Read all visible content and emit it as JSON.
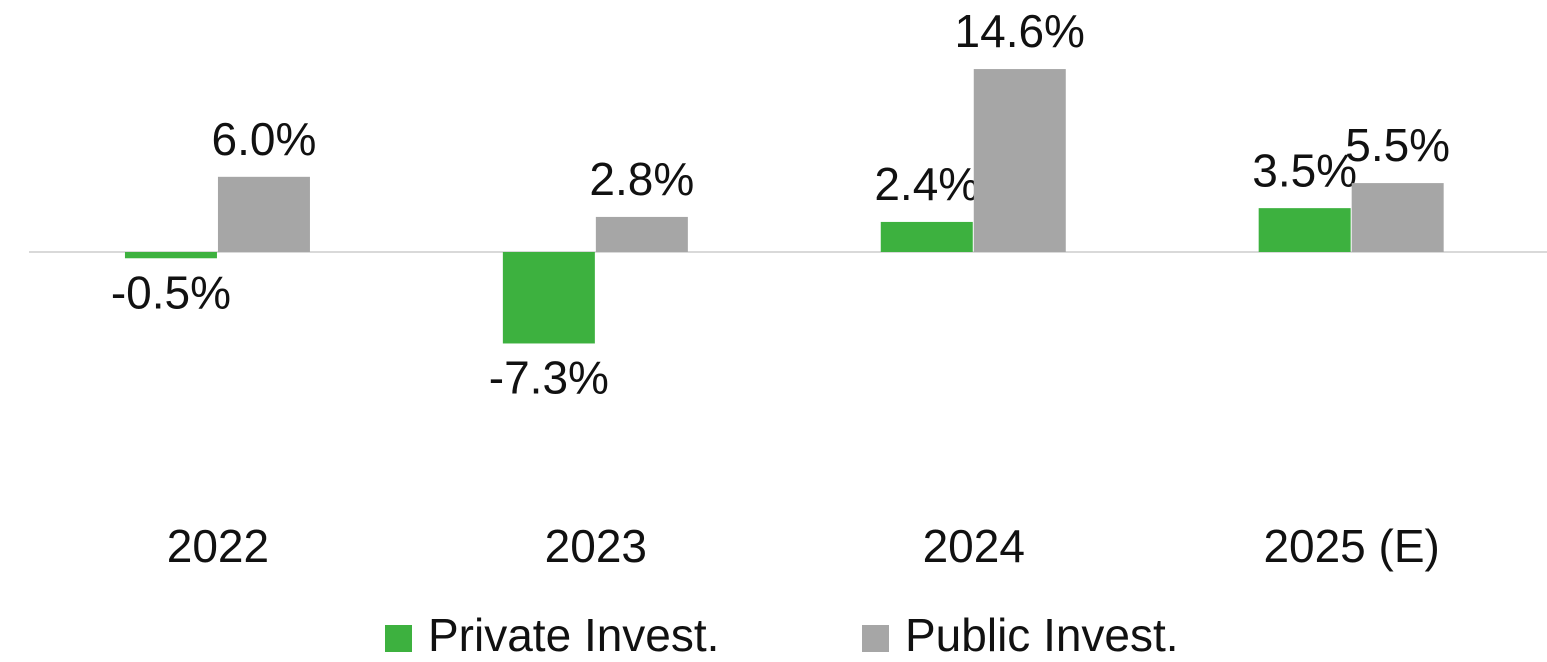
{
  "chart_data": {
    "type": "bar",
    "categories": [
      "2022",
      "2023",
      "2024",
      "2025 (E)"
    ],
    "series": [
      {
        "name": "Private Invest.",
        "color": "#3db13f",
        "values": [
          -0.5,
          -7.3,
          2.4,
          3.5
        ],
        "value_labels": [
          "-0.5%",
          "-7.3%",
          "2.4%",
          "3.5%"
        ]
      },
      {
        "name": "Public Invest.",
        "color": "#a6a6a6",
        "values": [
          6.0,
          2.8,
          14.6,
          5.5
        ],
        "value_labels": [
          "6.0%",
          "2.8%",
          "14.6%",
          "5.5%"
        ]
      }
    ],
    "legend": "bottom"
  }
}
